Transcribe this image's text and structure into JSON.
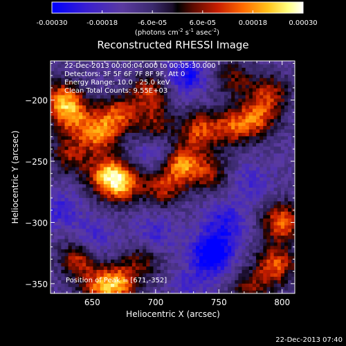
{
  "colorbar": {
    "tick_labels": [
      "-0.00030",
      "-0.00018",
      "-6.0e-05",
      "6.0e-05",
      "0.00018",
      "0.00030"
    ],
    "ticks": [
      -0.0003,
      -0.00018,
      -6e-05,
      6e-05,
      0.00018,
      0.0003
    ],
    "range": [
      -0.0003,
      0.0003
    ],
    "unit_main": "(photons cm",
    "unit_exp1": "-2",
    "unit_mid": " s",
    "unit_exp2": "-1",
    "unit_tail": " asec",
    "unit_exp3": "-2",
    "unit_close": ")",
    "colormap": [
      "#0000ff",
      "#3a1fcf",
      "#5a3aa0",
      "#3b2a6e",
      "#1a0d2a",
      "#000000",
      "#5a0a00",
      "#c81e00",
      "#ff6a00",
      "#ffc21a",
      "#ffff80",
      "#ffffff"
    ]
  },
  "annotations": {
    "time_range": "22-Dec-2013 00:00:04.000 to 00:05:30.000",
    "detectors": "Detectors: 3F 5F 6F 7F 8F 9F, Att 0",
    "energy": "Energy Range: 10.0 - 25.0 keV",
    "clean": "Clean    Total Counts: 9.55E+03",
    "peak": "Position of Peak = [671,-352]"
  },
  "footer": {
    "timestamp": "22-Dec-2013 07:40"
  },
  "chart_data": {
    "type": "heatmap",
    "title": "Reconstructed RHESSI Image",
    "xlabel": "Heliocentric X (arcsec)",
    "ylabel": "Heliocentric Y (arcsec)",
    "xlim": [
      617,
      810
    ],
    "ylim": [
      -358,
      -168
    ],
    "x_ticks": [
      650,
      700,
      750,
      800
    ],
    "y_ticks": [
      -200,
      -250,
      -300,
      -350
    ],
    "x_tick_labels": [
      "650",
      "700",
      "750",
      "800"
    ],
    "y_tick_labels": [
      "−200",
      "−250",
      "−300",
      "−350"
    ],
    "value_range": [
      -0.0003,
      0.0003
    ],
    "peak_position": [
      671,
      -352
    ],
    "grid": false,
    "blobs": [
      {
        "x": 627,
        "y": -200,
        "v": 0.00026
      },
      {
        "x": 635,
        "y": -215,
        "v": 0.0002
      },
      {
        "x": 632,
        "y": -245,
        "v": 0.00016
      },
      {
        "x": 655,
        "y": -228,
        "v": 0.00024
      },
      {
        "x": 670,
        "y": -212,
        "v": 0.00022
      },
      {
        "x": 672,
        "y": -268,
        "v": 0.0003
      },
      {
        "x": 660,
        "y": -260,
        "v": 0.00022
      },
      {
        "x": 695,
        "y": -195,
        "v": 0.0002
      },
      {
        "x": 700,
        "y": -222,
        "v": 0.00016
      },
      {
        "x": 705,
        "y": -272,
        "v": 0.00018
      },
      {
        "x": 720,
        "y": -252,
        "v": 0.00028
      },
      {
        "x": 735,
        "y": -225,
        "v": 0.00022
      },
      {
        "x": 742,
        "y": -260,
        "v": 0.00016
      },
      {
        "x": 760,
        "y": -222,
        "v": 0.0002
      },
      {
        "x": 780,
        "y": -215,
        "v": 0.00022
      },
      {
        "x": 762,
        "y": -182,
        "v": 0.00014
      },
      {
        "x": 790,
        "y": -195,
        "v": 0.00018
      },
      {
        "x": 800,
        "y": -300,
        "v": 0.00026
      },
      {
        "x": 795,
        "y": -335,
        "v": 0.00024
      },
      {
        "x": 775,
        "y": -355,
        "v": 0.00016
      },
      {
        "x": 640,
        "y": -330,
        "v": 0.00022
      },
      {
        "x": 670,
        "y": -350,
        "v": 0.00026
      },
      {
        "x": 655,
        "y": -355,
        "v": 0.00018
      },
      {
        "x": 690,
        "y": -332,
        "v": 0.00014
      },
      {
        "x": 700,
        "y": -310,
        "v": -0.0001
      },
      {
        "x": 745,
        "y": -325,
        "v": -0.00026
      },
      {
        "x": 755,
        "y": -300,
        "v": -0.00014
      },
      {
        "x": 650,
        "y": -315,
        "v": -0.00012
      },
      {
        "x": 625,
        "y": -290,
        "v": -0.0001
      },
      {
        "x": 725,
        "y": -180,
        "v": -0.00016
      },
      {
        "x": 702,
        "y": -242,
        "v": -0.00012
      },
      {
        "x": 775,
        "y": -268,
        "v": -8e-05
      },
      {
        "x": 730,
        "y": -350,
        "v": -8e-05
      }
    ]
  }
}
